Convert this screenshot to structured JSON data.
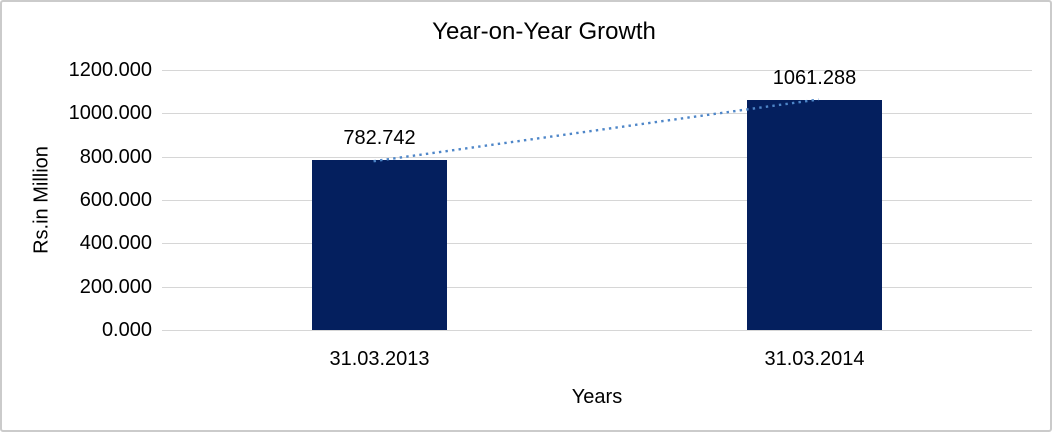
{
  "chart_data": {
    "type": "bar",
    "title": "Year-on-Year Growth",
    "xlabel": "Years",
    "ylabel": "Rs.in Million",
    "categories": [
      "31.03.2013",
      "31.03.2014"
    ],
    "values": [
      782.742,
      1061.288
    ],
    "data_labels": [
      "782.742",
      "1061.288"
    ],
    "ylim": [
      0,
      1200
    ],
    "y_ticks": [
      0,
      200,
      400,
      600,
      800,
      1000,
      1200
    ],
    "y_tick_labels": [
      "0.000",
      "200.000",
      "400.000",
      "600.000",
      "800.000",
      "1000.000",
      "1200.000"
    ],
    "grid": true,
    "legend": false,
    "trendline": {
      "type": "linear",
      "style": "dotted"
    },
    "colors": {
      "bar": "#041F5E",
      "trendline": "#4E86C8",
      "gridline": "#D6D6D6",
      "axis_text": "#000000",
      "frame_border": "#CBCBCB",
      "background": "#FFFFFF"
    }
  }
}
